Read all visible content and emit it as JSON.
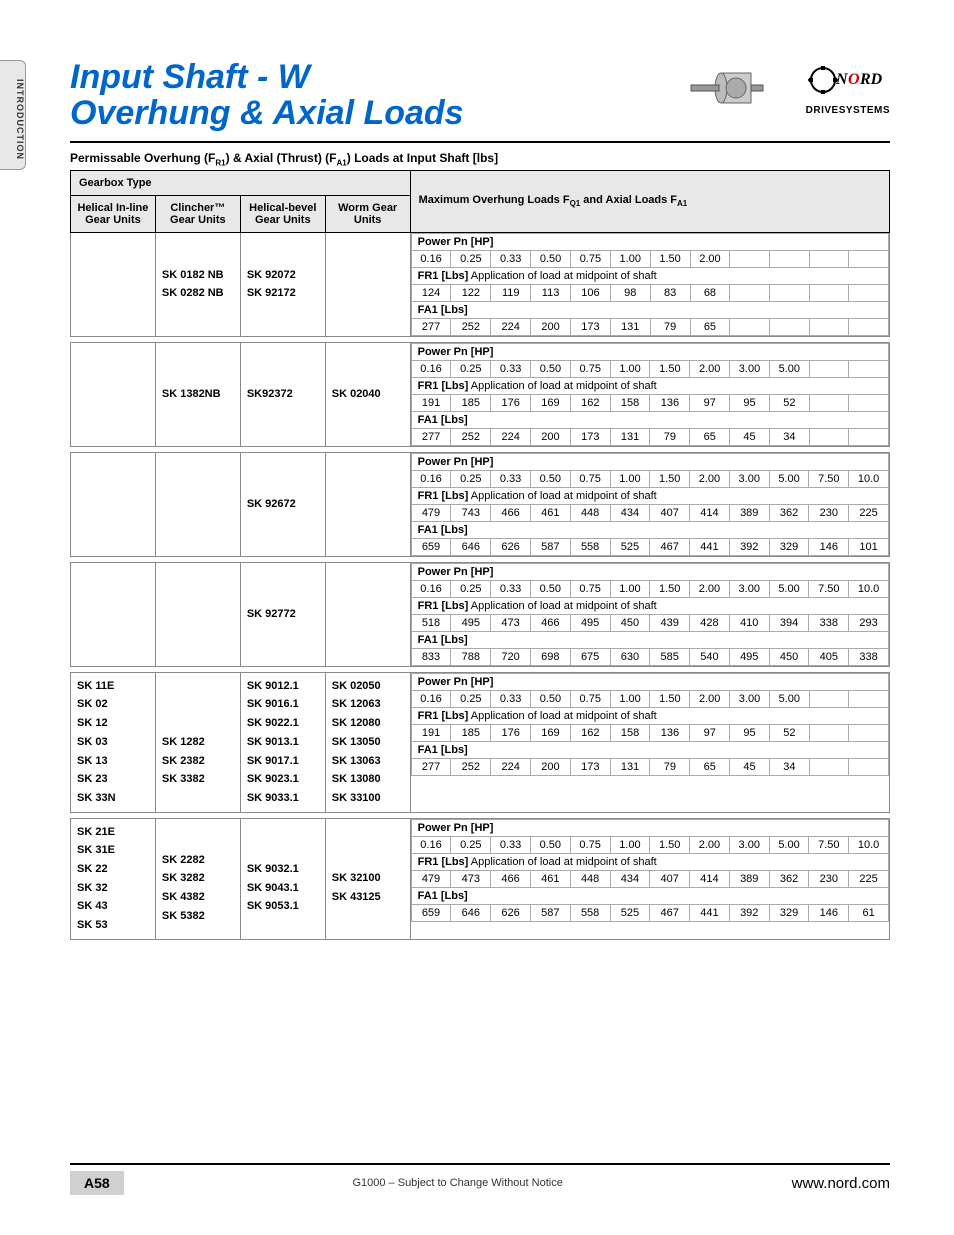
{
  "side_tab": "INTRODUCTION",
  "title_line1": "Input Shaft  - W",
  "title_line2": "Overhung & Axial Loads",
  "logo_sub": "DRIVESYSTEMS",
  "caption_pre": "Permissable Overhung (F",
  "caption_s1": "R1",
  "caption_mid": ") & Axial (Thrust) (F",
  "caption_s2": "A1",
  "caption_post": ") Loads at Input Shaft [lbs]",
  "gearbox_type": "Gearbox Type",
  "col1": "Helical In-line Gear Units",
  "col2": "Clincher™ Gear Units",
  "col3": "Helical-bevel Gear Units",
  "col4": "Worm Gear Units",
  "col5_pre": "Maximum Overhung Loads F",
  "col5_s1": "Q1",
  "col5_mid": " and Axial Loads F",
  "col5_s2": "A1",
  "power_label": "Power Pn [HP]",
  "fr1_label": "FR1 [Lbs]",
  "fr1_sub": " Application of load at midpoint of shaft",
  "fa1_label": "FA1 [Lbs]",
  "blocks": [
    {
      "gb": [
        "",
        "SK 0182 NB\nSK 0282 NB",
        "SK 92072\nSK 92172",
        ""
      ],
      "cols": 8,
      "power": [
        "0.16",
        "0.25",
        "0.33",
        "0.50",
        "0.75",
        "1.00",
        "1.50",
        "2.00"
      ],
      "fr1": [
        "124",
        "122",
        "119",
        "113",
        "106",
        "98",
        "83",
        "68"
      ],
      "fa1": [
        "277",
        "252",
        "224",
        "200",
        "173",
        "131",
        "79",
        "65"
      ]
    },
    {
      "gb": [
        "",
        "SK 1382NB",
        "SK92372",
        "SK 02040"
      ],
      "cols": 10,
      "power": [
        "0.16",
        "0.25",
        "0.33",
        "0.50",
        "0.75",
        "1.00",
        "1.50",
        "2.00",
        "3.00",
        "5.00"
      ],
      "fr1": [
        "191",
        "185",
        "176",
        "169",
        "162",
        "158",
        "136",
        "97",
        "95",
        "52"
      ],
      "fa1": [
        "277",
        "252",
        "224",
        "200",
        "173",
        "131",
        "79",
        "65",
        "45",
        "34"
      ]
    },
    {
      "gb": [
        "",
        "",
        "SK 92672",
        ""
      ],
      "cols": 12,
      "power": [
        "0.16",
        "0.25",
        "0.33",
        "0.50",
        "0.75",
        "1.00",
        "1.50",
        "2.00",
        "3.00",
        "5.00",
        "7.50",
        "10.0"
      ],
      "fr1": [
        "479",
        "743",
        "466",
        "461",
        "448",
        "434",
        "407",
        "414",
        "389",
        "362",
        "230",
        "225"
      ],
      "fa1": [
        "659",
        "646",
        "626",
        "587",
        "558",
        "525",
        "467",
        "441",
        "392",
        "329",
        "146",
        "101"
      ]
    },
    {
      "gb": [
        "",
        "",
        "SK 92772",
        ""
      ],
      "cols": 12,
      "power": [
        "0.16",
        "0.25",
        "0.33",
        "0.50",
        "0.75",
        "1.00",
        "1.50",
        "2.00",
        "3.00",
        "5.00",
        "7.50",
        "10.0"
      ],
      "fr1": [
        "518",
        "495",
        "473",
        "466",
        "495",
        "450",
        "439",
        "428",
        "410",
        "394",
        "338",
        "293"
      ],
      "fa1": [
        "833",
        "788",
        "720",
        "698",
        "675",
        "630",
        "585",
        "540",
        "495",
        "450",
        "405",
        "338"
      ]
    },
    {
      "gb": [
        "SK 11E\nSK 02\nSK 12\nSK 03\nSK 13\nSK 23\nSK 33N",
        "\n\nSK 1282\nSK 2382\nSK 3382",
        "SK 9012.1\nSK 9016.1\nSK 9022.1\nSK 9013.1\nSK 9017.1\nSK 9023.1\nSK 9033.1",
        "SK 02050\nSK 12063\nSK 12080\nSK 13050\nSK 13063\nSK 13080\nSK 33100"
      ],
      "cols": 10,
      "power": [
        "0.16",
        "0.25",
        "0.33",
        "0.50",
        "0.75",
        "1.00",
        "1.50",
        "2.00",
        "3.00",
        "5.00"
      ],
      "fr1": [
        "191",
        "185",
        "176",
        "169",
        "162",
        "158",
        "136",
        "97",
        "95",
        "52"
      ],
      "fa1": [
        "277",
        "252",
        "224",
        "200",
        "173",
        "131",
        "79",
        "65",
        "45",
        "34"
      ]
    },
    {
      "gb": [
        "SK 21E\nSK 31E\nSK 22\nSK 32\nSK 43\nSK 53",
        "\nSK 2282\nSK 3282\nSK 4382\nSK 5382",
        "\nSK 9032.1\nSK 9043.1\nSK 9053.1",
        "\nSK 32100\nSK 43125"
      ],
      "cols": 12,
      "power": [
        "0.16",
        "0.25",
        "0.33",
        "0.50",
        "0.75",
        "1.00",
        "1.50",
        "2.00",
        "3.00",
        "5.00",
        "7.50",
        "10.0"
      ],
      "fr1": [
        "479",
        "473",
        "466",
        "461",
        "448",
        "434",
        "407",
        "414",
        "389",
        "362",
        "230",
        "225"
      ],
      "fa1": [
        "659",
        "646",
        "626",
        "587",
        "558",
        "525",
        "467",
        "441",
        "392",
        "329",
        "146",
        "61"
      ]
    }
  ],
  "page_number": "A58",
  "footer_center": "G1000 – Subject to Change Without Notice",
  "footer_url": "www.nord.com"
}
